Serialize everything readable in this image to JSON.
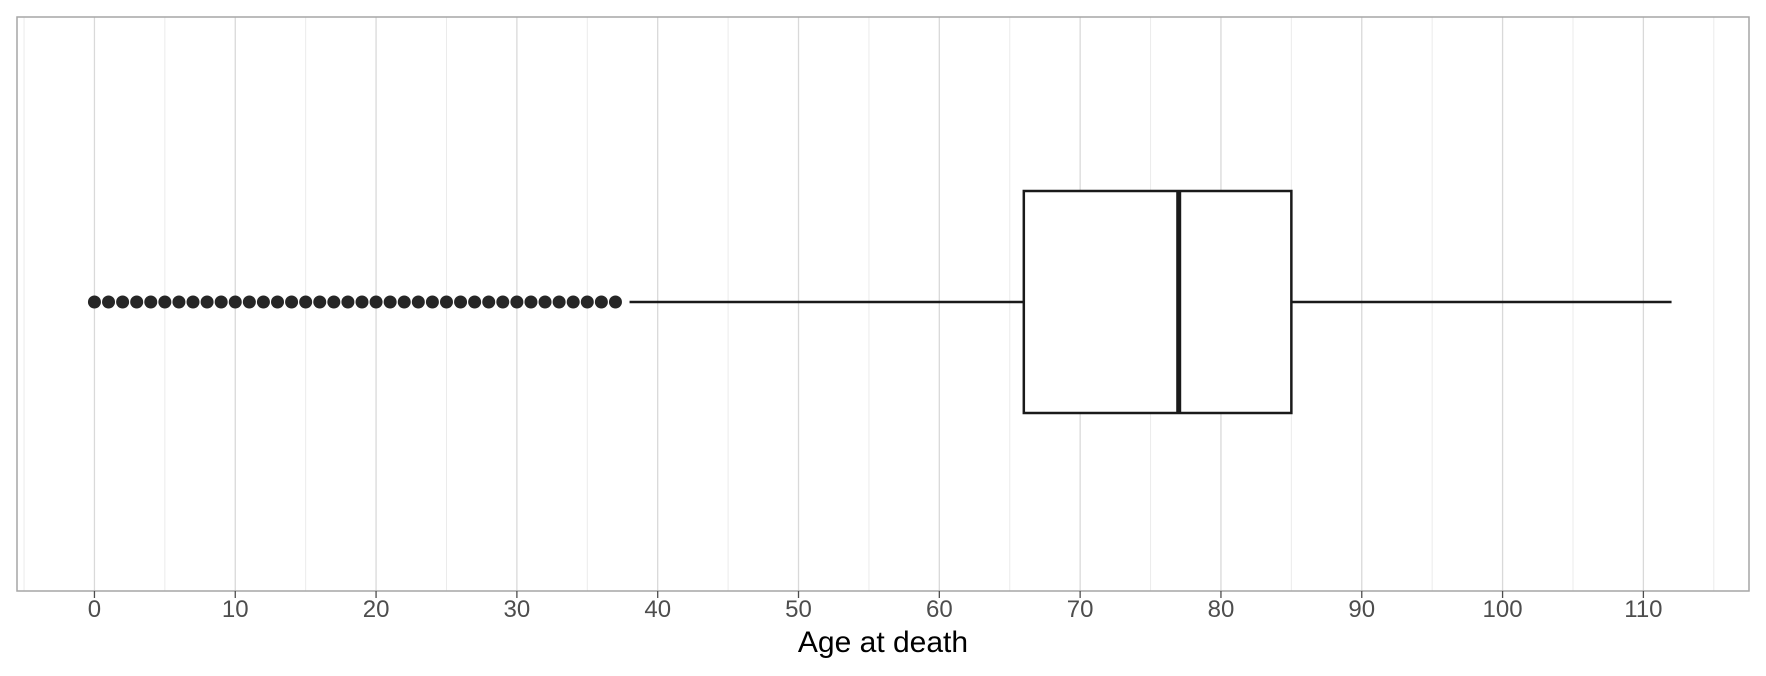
{
  "chart_data": {
    "type": "boxplot",
    "orientation": "horizontal",
    "title": "",
    "xlabel": "Age at death",
    "ylabel": "",
    "xlim": [
      -5.5,
      117.5
    ],
    "x_ticks": [
      0,
      10,
      20,
      30,
      40,
      50,
      60,
      70,
      80,
      90,
      100,
      110
    ],
    "x_tick_labels": [
      "0",
      "10",
      "20",
      "30",
      "40",
      "50",
      "60",
      "70",
      "80",
      "90",
      "100",
      "110"
    ],
    "grid": true,
    "box": {
      "whisker_low": 38,
      "q1": 66,
      "median": 77,
      "q3": 85,
      "whisker_high": 112
    },
    "outliers": [
      0,
      1,
      2,
      3,
      4,
      5,
      6,
      7,
      8,
      9,
      10,
      11,
      12,
      13,
      14,
      15,
      16,
      17,
      18,
      19,
      20,
      21,
      22,
      23,
      24,
      25,
      26,
      27,
      28,
      29,
      30,
      31,
      32,
      33,
      34,
      35,
      36,
      37
    ],
    "colors": {
      "box_line": "#1a1a1a",
      "outlier": "#262626",
      "grid_major": "#d9d9d9",
      "grid_minor": "#ebebeb",
      "panel_border": "#a6a6a6"
    }
  }
}
